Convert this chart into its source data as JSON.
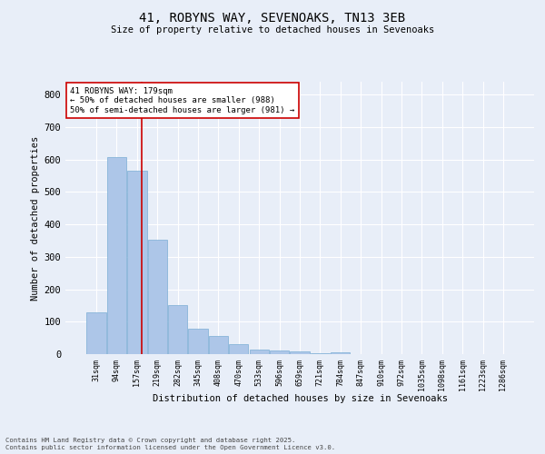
{
  "title_line1": "41, ROBYNS WAY, SEVENOAKS, TN13 3EB",
  "title_line2": "Size of property relative to detached houses in Sevenoaks",
  "xlabel": "Distribution of detached houses by size in Sevenoaks",
  "ylabel": "Number of detached properties",
  "bar_labels": [
    "31sqm",
    "94sqm",
    "157sqm",
    "219sqm",
    "282sqm",
    "345sqm",
    "408sqm",
    "470sqm",
    "533sqm",
    "596sqm",
    "659sqm",
    "721sqm",
    "784sqm",
    "847sqm",
    "910sqm",
    "972sqm",
    "1035sqm",
    "1098sqm",
    "1161sqm",
    "1223sqm",
    "1286sqm"
  ],
  "bar_values": [
    130,
    608,
    565,
    352,
    150,
    78,
    55,
    32,
    15,
    12,
    8,
    4,
    5,
    0,
    0,
    0,
    0,
    0,
    0,
    0,
    0
  ],
  "bar_color": "#adc6e8",
  "bar_edge_color": "#7aadd4",
  "vline_x": 2,
  "vline_color": "#cc0000",
  "annotation_text": "41 ROBYNS WAY: 179sqm\n← 50% of detached houses are smaller (988)\n50% of semi-detached houses are larger (981) →",
  "annotation_box_color": "#ffffff",
  "annotation_box_edge": "#cc0000",
  "ylim": [
    0,
    840
  ],
  "yticks": [
    0,
    100,
    200,
    300,
    400,
    500,
    600,
    700,
    800
  ],
  "bg_color": "#e8eef8",
  "grid_color": "#ffffff",
  "footer_line1": "Contains HM Land Registry data © Crown copyright and database right 2025.",
  "footer_line2": "Contains public sector information licensed under the Open Government Licence v3.0."
}
